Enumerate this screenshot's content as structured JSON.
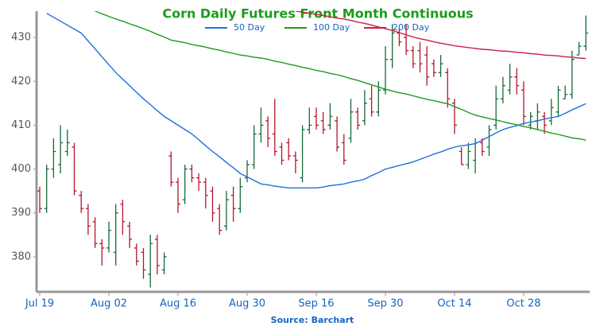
{
  "chart_data": {
    "type": "ohlc",
    "title": "Corn Daily Futures Front Month Continuous",
    "source": "Source: Barchart",
    "categories": [
      "Jul 19",
      null,
      null,
      null,
      null,
      null,
      null,
      null,
      null,
      null,
      "Aug 02",
      null,
      null,
      null,
      null,
      null,
      null,
      null,
      null,
      null,
      "Aug 16",
      null,
      null,
      null,
      null,
      null,
      null,
      null,
      null,
      null,
      "Aug 30",
      null,
      null,
      null,
      null,
      null,
      null,
      null,
      null,
      null,
      "Sep 16",
      null,
      null,
      null,
      null,
      null,
      null,
      null,
      null,
      null,
      "Sep 30",
      null,
      null,
      null,
      null,
      null,
      null,
      null,
      null,
      null,
      "Oct 14",
      null,
      null,
      null,
      null,
      null,
      null,
      null,
      null,
      null,
      "Oct 28",
      null,
      null,
      null,
      null,
      null,
      null,
      null,
      null,
      null
    ],
    "ohlc": {
      "up_color": "#17693a",
      "down_color": "#b3162c",
      "open": [
        395,
        391,
        400,
        401,
        404,
        405,
        394,
        391,
        388,
        383,
        382,
        381,
        392,
        387,
        382,
        381,
        376,
        384,
        377,
        403,
        397,
        393,
        400,
        398,
        397,
        395,
        391,
        387,
        394,
        391,
        398,
        401,
        408,
        411,
        408,
        405,
        406,
        403,
        398,
        409,
        412,
        411,
        410,
        411,
        406,
        407,
        413,
        411,
        416,
        413,
        418,
        425,
        431,
        430,
        427,
        427,
        426,
        424,
        422,
        422,
        415,
        404,
        401,
        402,
        406,
        405,
        410,
        416,
        418,
        421,
        418,
        410,
        411,
        412,
        411,
        413,
        416,
        417,
        426,
        428
      ],
      "high": [
        396,
        401,
        407,
        410,
        409,
        406,
        395,
        392,
        389,
        384,
        388,
        392,
        393,
        388,
        383,
        382,
        385,
        385,
        381,
        404,
        398,
        401,
        401,
        399,
        398,
        396,
        392,
        395,
        396,
        398,
        402,
        410,
        414,
        412,
        416,
        406,
        407,
        404,
        410,
        414,
        414,
        413,
        415,
        412,
        408,
        416,
        414,
        418,
        419,
        420,
        428,
        433,
        432,
        433,
        428,
        429,
        428,
        425,
        426,
        423,
        416,
        405,
        406,
        407,
        407,
        410,
        419,
        421,
        424,
        423,
        420,
        413,
        415,
        413,
        416,
        419,
        419,
        427,
        429,
        435
      ],
      "low": [
        390,
        390,
        398,
        399,
        403,
        394,
        390,
        385,
        382,
        378,
        381,
        378,
        385,
        382,
        378,
        375,
        373,
        376,
        376,
        396,
        390,
        392,
        397,
        395,
        391,
        388,
        385,
        386,
        388,
        390,
        397,
        400,
        406,
        405,
        403,
        401,
        402,
        399,
        397,
        408,
        409,
        408,
        409,
        404,
        401,
        406,
        409,
        410,
        412,
        412,
        417,
        423,
        428,
        426,
        423,
        422,
        419,
        421,
        421,
        414,
        408,
        401,
        400,
        399,
        403,
        403,
        409,
        415,
        417,
        417,
        410,
        409,
        409,
        408,
        410,
        412,
        416,
        416,
        426,
        427
      ],
      "close": [
        391,
        400,
        404,
        406,
        406,
        395,
        391,
        387,
        383,
        382,
        386,
        390,
        388,
        384,
        379,
        377,
        383,
        378,
        380,
        397,
        392,
        400,
        398,
        397,
        394,
        390,
        386,
        393,
        391,
        396,
        401,
        408,
        410,
        407,
        404,
        402,
        403,
        402,
        409,
        410,
        410,
        409,
        412,
        405,
        402,
        413,
        410,
        415,
        413,
        418,
        425,
        431,
        429,
        427,
        424,
        424,
        421,
        422,
        424,
        416,
        410,
        401,
        404,
        406,
        404,
        409,
        416,
        419,
        421,
        419,
        412,
        412,
        413,
        410,
        414,
        418,
        417,
        425,
        428,
        431
      ]
    },
    "moving_averages": [
      {
        "name": "50 Day",
        "color": "#1f6fdc",
        "values": [
          null,
          435.5,
          434.6,
          433.7,
          432.8,
          431.9,
          431.0,
          429.2,
          427.4,
          425.6,
          423.8,
          422.0,
          420.5,
          419.0,
          417.5,
          416.0,
          414.7,
          413.3,
          412.0,
          411.0,
          410.0,
          409.0,
          408.0,
          406.7,
          405.3,
          404.0,
          402.8,
          401.5,
          400.3,
          399.0,
          398.2,
          397.4,
          396.6,
          396.4,
          396.1,
          395.9,
          395.7,
          395.7,
          395.7,
          395.7,
          395.7,
          395.9,
          396.2,
          396.4,
          396.6,
          397.0,
          397.3,
          397.7,
          398.5,
          399.2,
          400.0,
          400.4,
          400.8,
          401.2,
          401.6,
          402.2,
          402.8,
          403.4,
          403.9,
          404.5,
          405.0,
          405.3,
          405.5,
          405.8,
          406.6,
          407.4,
          408.2,
          409.0,
          409.5,
          409.9,
          410.4,
          410.7,
          411.0,
          411.4,
          411.7,
          412.0,
          412.7,
          413.5,
          414.2,
          414.9
        ]
      },
      {
        "name": "100 Day",
        "color": "#1e9a1e",
        "values": [
          null,
          null,
          null,
          null,
          null,
          null,
          null,
          null,
          436.0,
          435.4,
          434.8,
          434.2,
          433.7,
          433.1,
          432.6,
          432.0,
          431.4,
          430.7,
          430.1,
          429.4,
          429.1,
          428.8,
          428.4,
          428.1,
          427.8,
          427.4,
          427.1,
          426.7,
          426.4,
          426.0,
          425.8,
          425.5,
          425.3,
          425.0,
          424.6,
          424.3,
          423.9,
          423.6,
          423.2,
          422.9,
          422.5,
          422.2,
          421.8,
          421.5,
          421.1,
          420.6,
          420.2,
          419.7,
          419.2,
          418.7,
          418.2,
          417.8,
          417.4,
          417.1,
          416.7,
          416.3,
          415.9,
          415.6,
          415.2,
          414.9,
          414.2,
          413.6,
          412.9,
          412.3,
          411.9,
          411.5,
          411.2,
          410.8,
          410.4,
          410.1,
          409.7,
          409.4,
          409.0,
          408.6,
          408.2,
          407.9,
          407.5,
          407.1,
          406.9,
          406.6
        ]
      },
      {
        "name": "200 Day",
        "color": "#cc1f45",
        "values": [
          null,
          null,
          null,
          null,
          null,
          null,
          null,
          null,
          null,
          null,
          null,
          null,
          null,
          null,
          null,
          null,
          null,
          null,
          null,
          null,
          null,
          null,
          null,
          null,
          null,
          null,
          null,
          null,
          null,
          null,
          null,
          null,
          null,
          null,
          null,
          null,
          null,
          436.0,
          435.8,
          435.5,
          435.3,
          435.0,
          434.7,
          434.4,
          434.2,
          433.9,
          433.5,
          433.2,
          432.8,
          432.4,
          432.0,
          431.6,
          431.1,
          430.6,
          430.1,
          429.7,
          429.4,
          429.0,
          428.7,
          428.4,
          428.1,
          427.9,
          427.7,
          427.5,
          427.3,
          427.2,
          427.0,
          426.9,
          426.8,
          426.6,
          426.5,
          426.3,
          426.2,
          426.0,
          425.9,
          425.8,
          425.6,
          425.5,
          425.3,
          425.2
        ]
      }
    ],
    "ylim": [
      372,
      436
    ],
    "yticks": [
      380,
      390,
      400,
      410,
      420,
      430
    ],
    "title_color": "#1a9e1a",
    "grid": false
  }
}
